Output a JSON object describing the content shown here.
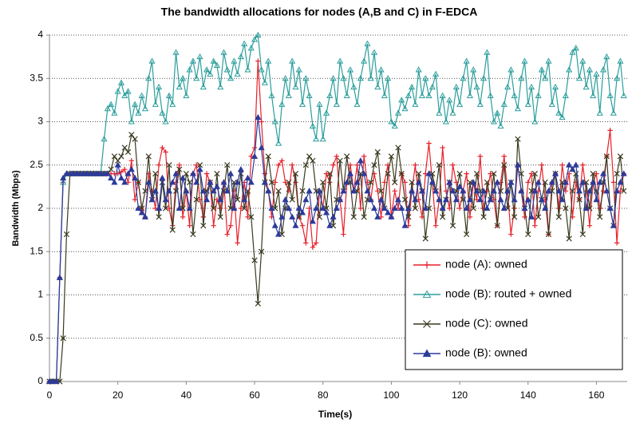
{
  "chart_data": {
    "type": "line",
    "title": "The bandwidth allocations for nodes (A,B and C) in F-EDCA",
    "x_label": "Time(s)",
    "y_label": "Bandwidth (Mbps)",
    "xlim": [
      0,
      169
    ],
    "ylim": [
      0,
      4
    ],
    "xticks": [
      0,
      20,
      40,
      60,
      80,
      100,
      120,
      140,
      160
    ],
    "yticks": [
      0,
      0.5,
      1,
      1.5,
      2,
      2.5,
      3,
      3.5,
      4
    ],
    "grid": true,
    "legend": "right",
    "x": [
      0,
      1,
      2,
      3,
      4,
      5,
      6,
      7,
      8,
      9,
      10,
      11,
      12,
      13,
      14,
      15,
      16,
      17,
      18,
      19,
      20,
      21,
      22,
      23,
      24,
      25,
      26,
      27,
      28,
      29,
      30,
      31,
      32,
      33,
      34,
      35,
      36,
      37,
      38,
      39,
      40,
      41,
      42,
      43,
      44,
      45,
      46,
      47,
      48,
      49,
      50,
      51,
      52,
      53,
      54,
      55,
      56,
      57,
      58,
      59,
      60,
      61,
      62,
      63,
      64,
      65,
      66,
      67,
      68,
      69,
      70,
      71,
      72,
      73,
      74,
      75,
      76,
      77,
      78,
      79,
      80,
      81,
      82,
      83,
      84,
      85,
      86,
      87,
      88,
      89,
      90,
      91,
      92,
      93,
      94,
      95,
      96,
      97,
      98,
      99,
      100,
      101,
      102,
      103,
      104,
      105,
      106,
      107,
      108,
      109,
      110,
      111,
      112,
      113,
      114,
      115,
      116,
      117,
      118,
      119,
      120,
      121,
      122,
      123,
      124,
      125,
      126,
      127,
      128,
      129,
      130,
      131,
      132,
      133,
      134,
      135,
      136,
      137,
      138,
      139,
      140,
      141,
      142,
      143,
      144,
      145,
      146,
      147,
      148,
      149,
      150,
      151,
      152,
      153,
      154,
      155,
      156,
      157,
      158,
      159,
      160,
      161,
      162,
      163,
      164,
      165,
      166,
      167,
      168
    ],
    "series": [
      {
        "name": "node (A): owned",
        "color": "#e8202a",
        "marker": "plus",
        "values": [
          0,
          0,
          0,
          1.2,
          2.3,
          2.4,
          2.4,
          2.4,
          2.4,
          2.4,
          2.4,
          2.4,
          2.4,
          2.4,
          2.4,
          2.4,
          2.4,
          2.4,
          2.4,
          2.4,
          2.4,
          2.42,
          2.45,
          2.3,
          2.55,
          2.1,
          2.3,
          2.0,
          1.9,
          2.4,
          2.2,
          2.0,
          2.5,
          2.7,
          2.65,
          2.0,
          1.8,
          2.3,
          2.5,
          1.9,
          2.2,
          1.8,
          2.4,
          2.5,
          2.1,
          1.9,
          2.4,
          2.3,
          1.8,
          2.1,
          2.0,
          2.3,
          1.7,
          1.8,
          2.2,
          1.6,
          2.0,
          2.3,
          1.9,
          2.6,
          2.7,
          3.7,
          3.0,
          2.4,
          2.2,
          1.9,
          2.3,
          2.5,
          2.55,
          2.3,
          2.2,
          2.5,
          2.3,
          1.9,
          1.8,
          1.6,
          2.0,
          1.55,
          1.6,
          2.2,
          2.0,
          2.4,
          2.3,
          2.5,
          2.6,
          2.1,
          1.7,
          2.3,
          2.5,
          2.2,
          2.5,
          2.0,
          2.6,
          2.3,
          2.1,
          2.4,
          2.2,
          1.9,
          2.3,
          2.5,
          1.9,
          2.2,
          2.0,
          2.4,
          2.3,
          1.8,
          2.2,
          2.5,
          2.1,
          1.9,
          2.4,
          2.75,
          2.3,
          1.8,
          2.1,
          2.7,
          2.2,
          2.0,
          2.5,
          2.3,
          2.0,
          2.2,
          2.4,
          1.9,
          2.3,
          2.1,
          2.6,
          2.0,
          2.2,
          2.4,
          2.1,
          1.8,
          2.3,
          2.6,
          2.2,
          1.7,
          2.0,
          2.5,
          2.2,
          1.9,
          2.3,
          2.4,
          1.8,
          2.2,
          2.5,
          2.1,
          1.7,
          2.3,
          2.4,
          2.0,
          2.5,
          2.2,
          2.4,
          1.9,
          2.3,
          2.1,
          2.5,
          2.2,
          1.8,
          2.3,
          2.4,
          2.0,
          2.2,
          2.6,
          2.9,
          2.3,
          1.6,
          2.2,
          2.4
        ]
      },
      {
        "name": "node (B): routed + owned",
        "color": "#2a9e9c",
        "marker": "triangle-open",
        "values": [
          0,
          0,
          0,
          1.2,
          2.3,
          2.4,
          2.4,
          2.4,
          2.4,
          2.4,
          2.4,
          2.4,
          2.4,
          2.4,
          2.4,
          2.4,
          2.8,
          3.15,
          3.2,
          3.1,
          3.35,
          3.45,
          3.3,
          3.35,
          3.0,
          3.2,
          3.1,
          3.3,
          3.15,
          3.5,
          3.7,
          3.2,
          3.4,
          3.1,
          3.0,
          3.3,
          3.2,
          3.8,
          3.4,
          3.5,
          3.3,
          3.6,
          3.7,
          3.5,
          3.75,
          3.4,
          3.6,
          3.55,
          3.7,
          3.65,
          3.4,
          3.8,
          3.6,
          3.5,
          3.7,
          3.55,
          3.75,
          3.9,
          3.6,
          3.85,
          3.95,
          4.0,
          3.6,
          3.45,
          3.7,
          3.3,
          3.0,
          2.75,
          3.2,
          3.5,
          3.3,
          3.7,
          3.4,
          3.6,
          3.2,
          3.5,
          3.3,
          2.95,
          2.8,
          3.2,
          2.8,
          3.1,
          3.3,
          3.5,
          3.2,
          3.7,
          3.5,
          3.3,
          3.6,
          3.4,
          3.2,
          3.5,
          3.7,
          3.9,
          3.5,
          3.8,
          3.4,
          3.6,
          3.3,
          3.5,
          3.0,
          2.95,
          3.1,
          3.25,
          3.15,
          3.3,
          3.4,
          3.2,
          3.6,
          3.3,
          3.5,
          3.3,
          3.4,
          3.55,
          3.1,
          3.3,
          3.0,
          3.25,
          3.1,
          3.4,
          3.2,
          3.5,
          3.7,
          3.3,
          3.6,
          3.4,
          3.2,
          3.5,
          3.8,
          3.3,
          3.0,
          3.1,
          2.95,
          3.2,
          3.4,
          3.6,
          3.3,
          3.15,
          3.5,
          3.7,
          3.2,
          3.4,
          3.0,
          3.3,
          3.6,
          3.5,
          3.7,
          3.2,
          3.4,
          3.1,
          3.05,
          3.3,
          3.6,
          3.8,
          3.85,
          3.5,
          3.7,
          3.4,
          3.6,
          3.3,
          3.55,
          3.1,
          3.6,
          3.75,
          3.3,
          3.1,
          3.5,
          3.7,
          3.3
        ]
      },
      {
        "name": "node (C): owned",
        "color": "#3a3a20",
        "marker": "cross",
        "values": [
          0,
          0,
          0,
          0,
          0.5,
          1.7,
          2.4,
          2.4,
          2.4,
          2.4,
          2.4,
          2.4,
          2.4,
          2.4,
          2.4,
          2.4,
          2.4,
          2.4,
          2.45,
          2.6,
          2.55,
          2.6,
          2.7,
          2.65,
          2.85,
          2.8,
          2.3,
          2.0,
          2.2,
          2.6,
          2.1,
          2.4,
          1.9,
          2.3,
          2.0,
          2.5,
          1.75,
          2.2,
          2.45,
          2.0,
          2.4,
          2.3,
          1.7,
          2.1,
          2.5,
          1.8,
          2.2,
          2.3,
          2.0,
          2.4,
          1.9,
          2.2,
          2.5,
          2.0,
          2.3,
          2.1,
          2.4,
          2.0,
          2.2,
          1.9,
          1.4,
          0.9,
          1.5,
          2.3,
          2.6,
          2.3,
          2.0,
          2.2,
          1.7,
          2.0,
          2.3,
          2.1,
          2.4,
          1.9,
          2.2,
          2.5,
          2.6,
          2.55,
          2.2,
          1.9,
          2.3,
          2.0,
          2.4,
          1.8,
          2.1,
          2.55,
          2.2,
          2.6,
          2.3,
          1.9,
          2.2,
          2.4,
          1.9,
          2.1,
          2.3,
          2.5,
          2.65,
          2.2,
          2.0,
          2.4,
          2.6,
          2.3,
          2.7,
          2.4,
          2.1,
          1.9,
          2.3,
          2.0,
          2.4,
          2.2,
          1.65,
          2.0,
          2.4,
          2.2,
          2.5,
          1.9,
          2.1,
          2.3,
          1.8,
          2.2,
          2.4,
          2.1,
          1.7,
          2.3,
          2.0,
          2.4,
          2.2,
          1.9,
          2.3,
          2.1,
          2.4,
          1.8,
          2.2,
          2.5,
          2.0,
          2.3,
          1.9,
          2.8,
          2.4,
          2.0,
          1.7,
          2.2,
          2.4,
          1.9,
          2.1,
          2.3,
          1.7,
          2.2,
          2.4,
          1.9,
          2.3,
          2.0,
          1.65,
          2.2,
          2.4,
          2.1,
          1.7,
          2.3,
          2.0,
          2.4,
          2.2,
          1.9,
          2.3,
          2.6,
          2.0,
          1.8,
          2.4,
          2.6,
          2.2
        ]
      },
      {
        "name": "node (B): owned",
        "color": "#2c3a9a",
        "marker": "triangle-filled",
        "values": [
          0,
          0,
          0,
          1.2,
          2.35,
          2.4,
          2.4,
          2.4,
          2.4,
          2.4,
          2.4,
          2.4,
          2.4,
          2.4,
          2.4,
          2.4,
          2.4,
          2.4,
          2.35,
          2.3,
          2.5,
          2.35,
          2.3,
          2.4,
          2.45,
          2.35,
          2.0,
          1.95,
          1.9,
          2.3,
          2.1,
          2.2,
          2.0,
          2.35,
          2.1,
          2.2,
          2.3,
          2.4,
          2.0,
          2.35,
          2.2,
          2.0,
          2.4,
          2.3,
          2.45,
          2.2,
          2.1,
          2.3,
          2.2,
          2.25,
          2.1,
          2.3,
          2.2,
          2.4,
          2.0,
          2.3,
          2.45,
          2.1,
          2.35,
          2.3,
          2.6,
          3.05,
          2.7,
          2.3,
          2.2,
          2.0,
          1.8,
          1.7,
          1.9,
          2.1,
          2.0,
          1.9,
          1.8,
          2.0,
          1.95,
          2.1,
          2.2,
          1.85,
          2.0,
          2.2,
          2.0,
          1.95,
          1.8,
          1.9,
          2.0,
          2.1,
          2.2,
          2.3,
          2.4,
          2.2,
          2.3,
          2.55,
          2.4,
          2.2,
          2.1,
          2.0,
          1.9,
          2.1,
          2.0,
          1.95,
          1.9,
          2.0,
          2.1,
          2.0,
          1.8,
          2.0,
          2.2,
          2.1,
          2.3,
          2.2,
          2.0,
          2.4,
          2.3,
          2.2,
          2.1,
          2.0,
          2.1,
          2.3,
          2.2,
          2.1,
          2.25,
          2.2,
          2.0,
          2.1,
          2.3,
          2.2,
          2.1,
          2.2,
          2.0,
          2.1,
          2.2,
          2.3,
          2.1,
          2.0,
          2.2,
          2.3,
          2.1,
          2.5,
          2.2,
          2.0,
          2.1,
          1.9,
          2.2,
          2.3,
          2.1,
          2.0,
          2.2,
          2.3,
          2.4,
          2.2,
          2.1,
          2.3,
          2.5,
          2.45,
          2.5,
          2.2,
          2.3,
          2.0,
          2.2,
          2.3,
          2.1,
          2.3,
          2.4,
          2.2,
          2.0,
          1.8,
          2.2,
          2.3,
          2.4
        ]
      }
    ]
  }
}
